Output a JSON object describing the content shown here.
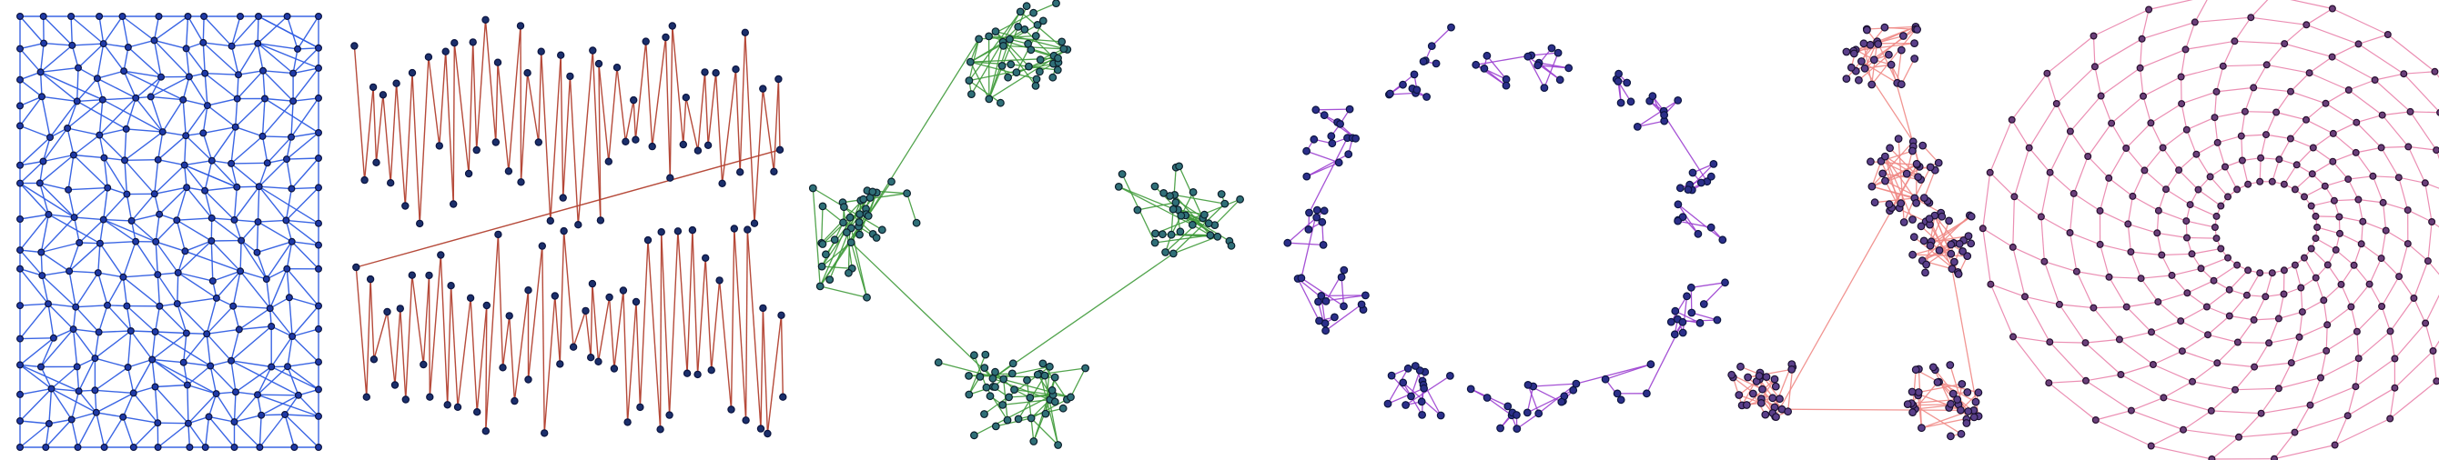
{
  "figure": {
    "panels": [
      {
        "id": "grid-triangulation",
        "edge_color": "#2f5de3",
        "node_fill": "#1f3aa8",
        "node_stroke": "#0b1440"
      },
      {
        "id": "zigzag-tour",
        "edge_color": "#b2402f",
        "node_fill": "#1b2f6b",
        "node_stroke": "#0b1440"
      },
      {
        "id": "cluster-tree",
        "edge_color": "#3f9a3a",
        "node_fill": "#2f6f78",
        "node_stroke": "#0b1f2a"
      },
      {
        "id": "ring-clusters",
        "edge_color": "#9b3fd0",
        "node_fill": "#2b2f8a",
        "node_stroke": "#0b1440"
      },
      {
        "id": "five-clusters",
        "edge_color": "#f08a86",
        "node_fill": "#5a3f8a",
        "node_stroke": "#1a1030"
      },
      {
        "id": "radial-web",
        "edge_color": "#e87aa6",
        "node_fill": "#6a3f7a",
        "node_stroke": "#2a1030"
      }
    ]
  }
}
